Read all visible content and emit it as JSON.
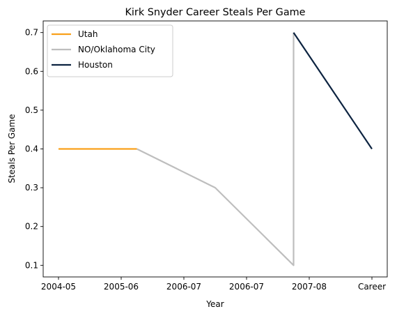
{
  "chart_data": {
    "type": "line",
    "title": "Kirk Snyder Career Steals Per Game",
    "xlabel": "Year",
    "ylabel": "Steals Per Game",
    "categories": [
      "2004-05",
      "2005-06",
      "2006-07",
      "2006-07",
      "2007-08",
      "Career"
    ],
    "ylim": [
      0.07,
      0.73
    ],
    "yticks": [
      "0.1",
      "0.2",
      "0.3",
      "0.4",
      "0.5",
      "0.6",
      "0.7"
    ],
    "grid": false,
    "legend_position": "top-left",
    "series": [
      {
        "name": "Utah",
        "color": "#F9A01B",
        "points": [
          {
            "x": 0,
            "y": 0.4
          },
          {
            "x": 1,
            "y": 0.4
          }
        ]
      },
      {
        "name": "NO/Oklahoma City",
        "color": "#BEBEBE",
        "points": [
          {
            "x": 1,
            "y": 0.4
          },
          {
            "x": 2,
            "y": 0.3
          },
          {
            "x": 3,
            "y": 0.1
          },
          {
            "x": 3,
            "y": 0.7
          }
        ]
      },
      {
        "name": "Houston",
        "color": "#0C2340",
        "points": [
          {
            "x": 3,
            "y": 0.7
          },
          {
            "x": 4,
            "y": 0.4
          }
        ]
      }
    ],
    "xtick_labels": [
      {
        "label": "2004-05",
        "x": 0
      },
      {
        "label": "2005-06",
        "x": 0.8
      },
      {
        "label": "2006-07",
        "x": 1.6
      },
      {
        "label": "2006-07",
        "x": 2.4
      },
      {
        "label": "2007-08",
        "x": 3.2
      },
      {
        "label": "Career",
        "x": 4
      }
    ]
  }
}
